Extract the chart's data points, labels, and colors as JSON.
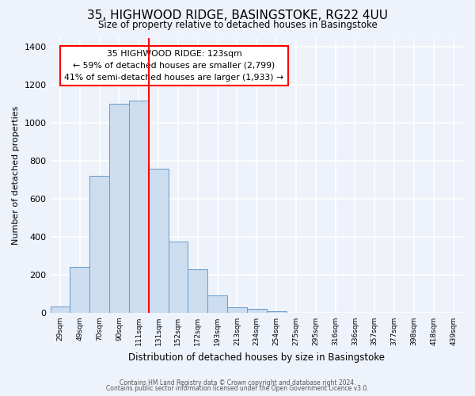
{
  "title": "35, HIGHWOOD RIDGE, BASINGSTOKE, RG22 4UU",
  "subtitle": "Size of property relative to detached houses in Basingstoke",
  "xlabel": "Distribution of detached houses by size in Basingstoke",
  "ylabel": "Number of detached properties",
  "bin_labels": [
    "29sqm",
    "49sqm",
    "70sqm",
    "90sqm",
    "111sqm",
    "131sqm",
    "152sqm",
    "172sqm",
    "193sqm",
    "213sqm",
    "234sqm",
    "254sqm",
    "275sqm",
    "295sqm",
    "316sqm",
    "336sqm",
    "357sqm",
    "377sqm",
    "398sqm",
    "418sqm",
    "439sqm"
  ],
  "bar_heights": [
    35,
    240,
    720,
    1100,
    1120,
    760,
    375,
    230,
    90,
    30,
    20,
    10,
    0,
    0,
    0,
    0,
    0,
    0,
    0,
    0,
    0
  ],
  "bar_color": "#ccddf0",
  "bar_edge_color": "#6699cc",
  "vline_x_index": 5,
  "vline_color": "red",
  "annotation_text": "35 HIGHWOOD RIDGE: 123sqm\n← 59% of detached houses are smaller (2,799)\n41% of semi-detached houses are larger (1,933) →",
  "annotation_box_color": "white",
  "annotation_box_edge_color": "red",
  "ylim": [
    0,
    1450
  ],
  "yticks": [
    0,
    200,
    400,
    600,
    800,
    1000,
    1200,
    1400
  ],
  "footer_line1": "Contains HM Land Registry data © Crown copyright and database right 2024.",
  "footer_line2": "Contains public sector information licensed under the Open Government Licence v3.0.",
  "background_color": "#eef2fa",
  "grid_color": "white",
  "n_bins": 21
}
